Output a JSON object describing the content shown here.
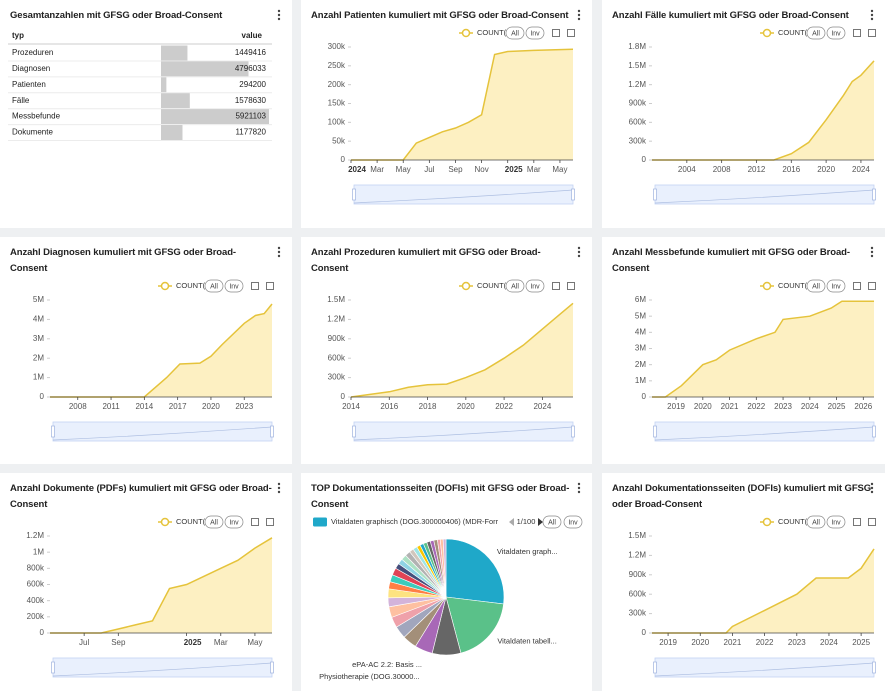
{
  "table": {
    "title": "Gesamtanzahlen mit GFSG oder Broad-Consent",
    "columns": [
      "typ",
      "value"
    ],
    "rows": [
      [
        "Prozeduren",
        1449416
      ],
      [
        "Diagnosen",
        4796033
      ],
      [
        "Patienten",
        294200
      ],
      [
        "Fälle",
        1578630
      ],
      [
        "Messbefunde",
        5921103
      ],
      [
        "Dokumente",
        1177820
      ]
    ]
  },
  "chart_data": [
    {
      "type": "line",
      "title": "Anzahl Patienten kumuliert mit GFSG oder Broad-Consent",
      "buttons": [
        "All",
        "Inv"
      ],
      "x": [
        "2024-01",
        "2024-05",
        "2024-06",
        "2024-07",
        "2024-08",
        "2024-09",
        "2024-10",
        "2024-11",
        "2024-12",
        "2025-01",
        "2025-03",
        "2025-06"
      ],
      "series": [
        {
          "name": "COUNT(*)",
          "color": "#e5c33b",
          "values": [
            0,
            0,
            45000,
            60000,
            75000,
            85000,
            100000,
            120000,
            280000,
            288000,
            291000,
            294200
          ]
        }
      ],
      "xlim": [
        "2024-01",
        "2025-06"
      ],
      "xticks": [
        {
          "value": "2024-01",
          "label": "2024"
        },
        {
          "value": "2024-03",
          "label": "Mar"
        },
        {
          "value": "2024-05",
          "label": "May"
        },
        {
          "value": "2024-07",
          "label": "Jul"
        },
        {
          "value": "2024-09",
          "label": "Sep"
        },
        {
          "value": "2024-11",
          "label": "Nov"
        },
        {
          "value": "2025-01",
          "label": "2025"
        },
        {
          "value": "2025-03",
          "label": "Mar"
        },
        {
          "value": "2025-05",
          "label": "May"
        }
      ],
      "ylim": [
        0,
        300000
      ],
      "yticks": [
        0,
        {
          "value": 50000,
          "label": "50k"
        },
        {
          "value": 100000,
          "label": "100k"
        },
        {
          "value": 150000,
          "label": "150k"
        },
        {
          "value": 200000,
          "label": "200k"
        },
        {
          "value": 250000,
          "label": "250k"
        },
        {
          "value": 300000,
          "label": "300k"
        }
      ]
    },
    {
      "type": "line",
      "title": "Anzahl Fälle kumuliert mit GFSG oder Broad-Consent",
      "buttons": [
        "All",
        "Inv"
      ],
      "x": [
        2000,
        2014,
        2016,
        2018,
        2020,
        2022,
        2023,
        2024,
        2025.5
      ],
      "series": [
        {
          "name": "COUNT(*)",
          "color": "#e5c33b",
          "values": [
            0,
            0,
            100000,
            280000,
            640000,
            1030000,
            1250000,
            1350000,
            1578630
          ]
        }
      ],
      "xlim": [
        2000,
        2025.5
      ],
      "xticks": [
        2004,
        2008,
        2012,
        2016,
        2020,
        2024
      ],
      "ylim": [
        0,
        1800000
      ],
      "yticks": [
        0,
        {
          "value": 300000,
          "label": "300k"
        },
        {
          "value": 600000,
          "label": "600k"
        },
        {
          "value": 900000,
          "label": "900k"
        },
        {
          "value": 1200000,
          "label": "1.2M"
        },
        {
          "value": 1500000,
          "label": "1.5M"
        },
        {
          "value": 1800000,
          "label": "1.8M"
        }
      ]
    },
    {
      "type": "line",
      "title": "Anzahl Diagnosen kumuliert mit GFSG oder Broad-Consent",
      "buttons": [
        "All",
        "Inv"
      ],
      "x": [
        2005.5,
        2014,
        2016,
        2017.2,
        2019,
        2020,
        2021,
        2023,
        2024,
        2024.8,
        2025.5
      ],
      "series": [
        {
          "name": "COUNT(*)",
          "color": "#e5c33b",
          "values": [
            0,
            0,
            1000000,
            1700000,
            1750000,
            2100000,
            2700000,
            3800000,
            4200000,
            4300000,
            4796033
          ]
        }
      ],
      "xlim": [
        2005.5,
        2025.5
      ],
      "xticks": [
        2008,
        2011,
        2014,
        2017,
        2020,
        2023
      ],
      "ylim": [
        0,
        5000000
      ],
      "yticks": [
        0,
        {
          "value": 1000000,
          "label": "1M"
        },
        {
          "value": 2000000,
          "label": "2M"
        },
        {
          "value": 3000000,
          "label": "3M"
        },
        {
          "value": 4000000,
          "label": "4M"
        },
        {
          "value": 5000000,
          "label": "5M"
        }
      ]
    },
    {
      "type": "line",
      "title": "Anzahl Prozeduren kumuliert mit GFSG oder Broad-Consent",
      "buttons": [
        "All",
        "Inv"
      ],
      "x": [
        2014,
        2015,
        2016,
        2017,
        2018,
        2019,
        2020,
        2021,
        2022,
        2023,
        2024,
        2025,
        2025.6
      ],
      "series": [
        {
          "name": "COUNT(*)",
          "color": "#e5c33b",
          "values": [
            0,
            40000,
            80000,
            150000,
            190000,
            200000,
            300000,
            420000,
            600000,
            800000,
            1050000,
            1300000,
            1449416
          ]
        }
      ],
      "xlim": [
        2014,
        2025.6
      ],
      "xticks": [
        2014,
        2016,
        2018,
        2020,
        2022,
        2024
      ],
      "ylim": [
        0,
        1500000
      ],
      "yticks": [
        0,
        {
          "value": 300000,
          "label": "300k"
        },
        {
          "value": 600000,
          "label": "600k"
        },
        {
          "value": 900000,
          "label": "900k"
        },
        {
          "value": 1200000,
          "label": "1.2M"
        },
        {
          "value": 1500000,
          "label": "1.5M"
        }
      ]
    },
    {
      "type": "line",
      "title": "Anzahl Messbefunde kumuliert mit GFSG oder Broad-Consent",
      "buttons": [
        "All",
        "Inv"
      ],
      "x": [
        2018.1,
        2018.6,
        2019.2,
        2020,
        2020.5,
        2021,
        2022,
        2022.7,
        2023,
        2024,
        2024.8,
        2025.2,
        2026.4
      ],
      "series": [
        {
          "name": "COUNT(*)",
          "color": "#e5c33b",
          "values": [
            0,
            0,
            700000,
            2000000,
            2300000,
            2900000,
            3600000,
            4000000,
            4800000,
            5000000,
            5500000,
            5921103,
            5921103
          ]
        }
      ],
      "xlim": [
        2018.1,
        2026.4
      ],
      "xticks": [
        2019,
        2020,
        2021,
        2022,
        2023,
        2024,
        2025,
        2026
      ],
      "ylim": [
        0,
        6000000
      ],
      "yticks": [
        0,
        {
          "value": 1000000,
          "label": "1M"
        },
        {
          "value": 2000000,
          "label": "2M"
        },
        {
          "value": 3000000,
          "label": "3M"
        },
        {
          "value": 4000000,
          "label": "4M"
        },
        {
          "value": 5000000,
          "label": "5M"
        },
        {
          "value": 6000000,
          "label": "6M"
        }
      ]
    },
    {
      "type": "line",
      "title": "Anzahl Dokumente (PDFs) kumuliert mit GFSG oder Broad-Consent",
      "buttons": [
        "All",
        "Inv"
      ],
      "x": [
        "2024-05",
        "2024-08",
        "2024-09",
        "2024-10",
        "2024-11",
        "2024-12",
        "2025-01",
        "2025-02",
        "2025-03",
        "2025-04",
        "2025-05",
        "2025-06"
      ],
      "series": [
        {
          "name": "COUNT(*)",
          "color": "#e5c33b",
          "values": [
            0,
            0,
            50000,
            100000,
            150000,
            550000,
            600000,
            700000,
            800000,
            900000,
            1050000,
            1177820
          ]
        }
      ],
      "xlim": [
        "2024-05",
        "2025-06"
      ],
      "xticks": [
        {
          "value": "2024-07",
          "label": "Jul"
        },
        {
          "value": "2024-09",
          "label": "Sep"
        },
        {
          "value": "2025-01",
          "label": "2025"
        },
        {
          "value": "2025-03",
          "label": "Mar"
        },
        {
          "value": "2025-05",
          "label": "May"
        }
      ],
      "ylim": [
        0,
        1200000
      ],
      "yticks": [
        0,
        {
          "value": 200000,
          "label": "200k"
        },
        {
          "value": 400000,
          "label": "400k"
        },
        {
          "value": 600000,
          "label": "600k"
        },
        {
          "value": 800000,
          "label": "800k"
        },
        {
          "value": 1000000,
          "label": "1M"
        },
        {
          "value": 1200000,
          "label": "1.2M"
        }
      ]
    },
    {
      "type": "pie",
      "title": "TOP Dokumentationsseiten (DOFIs) mit GFSG oder Broad-Consent",
      "buttons": [
        "All",
        "Inv"
      ],
      "legend_label": "Vitaldaten graphisch (DOG.300000406) (MDR-Forr",
      "legend_pager": "1/100",
      "categories": [
        "Vitaldaten graph...",
        "Vitaldaten tabell...",
        "ePA-AC 2.2: Basis ...",
        "Physiotherapie (DOG.30000...",
        null,
        null,
        null,
        null,
        null,
        null,
        null,
        null,
        null,
        null,
        null,
        null,
        null,
        null,
        null,
        null,
        null,
        null,
        null,
        null,
        null,
        null,
        null,
        null
      ],
      "values": [
        27,
        19,
        8,
        5,
        4,
        3.5,
        3,
        3,
        2.5,
        2.5,
        2,
        2,
        2,
        1.5,
        1.5,
        1.5,
        1.5,
        1.2,
        1.2,
        1,
        1,
        1,
        1,
        1,
        1,
        0.8,
        0.8,
        0.8
      ],
      "colors": [
        "#1fa8c9",
        "#5ac189",
        "#666666",
        "#a868b7",
        "#a38f79",
        "#a1a6bd",
        "#efa1aa",
        "#fec0a1",
        "#d3b3da",
        "#fde380",
        "#ff7f44",
        "#3cccbb",
        "#e04355",
        "#454e7c",
        "#8fd3e4",
        "#ace1c4",
        "#b2b2b2",
        "#d1c6bc",
        "#9ee5e5",
        "#fcc700",
        "#1fa8c9",
        "#5ac189",
        "#666666",
        "#a868b7",
        "#a38f79",
        "#efa1aa",
        "#fec0a1",
        "#d3b3da"
      ]
    },
    {
      "type": "line",
      "title": "Anzahl Dokumentationsseiten (DOFIs) kumuliert mit GFSG oder Broad-Consent",
      "buttons": [
        "All",
        "Inv"
      ],
      "x": [
        2018.5,
        2020.8,
        2021,
        2022,
        2023,
        2023.6,
        2024.6,
        2025,
        2025.4
      ],
      "series": [
        {
          "name": "COUNT(*)",
          "color": "#e5c33b",
          "values": [
            0,
            0,
            100000,
            350000,
            600000,
            850000,
            850000,
            1000000,
            1300000
          ]
        }
      ],
      "xlim": [
        2018.5,
        2025.4
      ],
      "xticks": [
        2019,
        2020,
        2021,
        2022,
        2023,
        2024,
        2025
      ],
      "ylim": [
        0,
        1500000
      ],
      "yticks": [
        0,
        {
          "value": 300000,
          "label": "300k"
        },
        {
          "value": 600000,
          "label": "600k"
        },
        {
          "value": 900000,
          "label": "900k"
        },
        {
          "value": 1200000,
          "label": "1.2M"
        },
        {
          "value": 1500000,
          "label": "1.5M"
        }
      ]
    }
  ]
}
